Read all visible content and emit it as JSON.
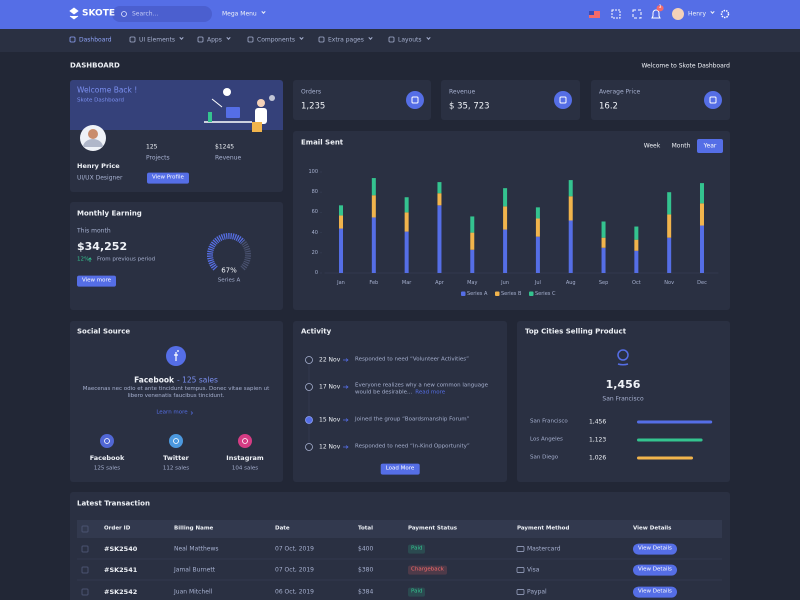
{
  "header": {
    "logo": "SKOTE",
    "search_placeholder": "Search...",
    "mega_menu": "Mega Menu",
    "notification_count": "3",
    "user": "Henry"
  },
  "nav": [
    "Dashboard",
    "UI Elements",
    "Apps",
    "Components",
    "Extra pages",
    "Layouts"
  ],
  "page": {
    "title": "DASHBOARD",
    "breadcrumb": "Welcome to Skote Dashboard"
  },
  "welcome": {
    "title": "Welcome Back !",
    "subtitle": "Skote Dashboard",
    "name": "Henry Price",
    "role": "UI/UX Designer",
    "stats": [
      {
        "value": "125",
        "label": "Projects"
      },
      {
        "value": "$1245",
        "label": "Revenue"
      }
    ],
    "button": "View Profile"
  },
  "stats": [
    {
      "label": "Orders",
      "value": "1,235"
    },
    {
      "label": "Revenue",
      "value": "$ 35, 723"
    },
    {
      "label": "Average Price",
      "value": "16.2"
    }
  ],
  "monthly_earning": {
    "title": "Monthly Earning",
    "period": "This month",
    "amount": "$34,252",
    "change": "12%",
    "change_text": "From previous period",
    "button": "View more",
    "gauge": {
      "value": 67,
      "label": "67%",
      "name": "Series A",
      "color": "#556ee6"
    }
  },
  "email_chart": {
    "type": "bar",
    "stacked": true,
    "title": "Email Sent",
    "ranges": [
      "Week",
      "Month",
      "Year"
    ],
    "active_range": 2,
    "categories": [
      "Jan",
      "Feb",
      "Mar",
      "Apr",
      "May",
      "Jun",
      "Jul",
      "Aug",
      "Sep",
      "Oct",
      "Nov",
      "Dec"
    ],
    "series": [
      {
        "name": "Series A",
        "color": "#556ee6",
        "values": [
          44,
          55,
          41,
          67,
          23,
          43,
          36,
          52,
          25,
          22,
          35,
          47
        ]
      },
      {
        "name": "Series B",
        "color": "#f1b44c",
        "values": [
          13,
          22,
          19,
          12,
          17,
          23,
          18,
          24,
          10,
          11,
          23,
          22
        ]
      },
      {
        "name": "Series C",
        "color": "#34c38f",
        "values": [
          10,
          17,
          15,
          11,
          16,
          18,
          11,
          16,
          16,
          13,
          22,
          20
        ]
      }
    ],
    "ylim": [
      0,
      100
    ],
    "yticks": [
      0,
      20,
      40,
      60,
      80,
      100
    ]
  },
  "social": {
    "title": "Social Source",
    "featured": "Facebook",
    "featured_sales": "- 125 sales",
    "text": "Maecenas nec odio et ante tincidunt tempus. Donec vitae sapien ut libero venenatis faucibus tincidunt.",
    "link": "Learn more",
    "items": [
      {
        "name": "Facebook",
        "sales": "125 sales",
        "color": "#556ee6"
      },
      {
        "name": "Twitter",
        "sales": "112 sales",
        "color": "#50a5f1"
      },
      {
        "name": "Instagram",
        "sales": "104 sales",
        "color": "#e83e8c"
      }
    ]
  },
  "activity": {
    "title": "Activity",
    "items": [
      {
        "date": "22 Nov",
        "text": "Responded to need “Volunteer Activities”"
      },
      {
        "date": "17 Nov",
        "text": "Everyone realizes why a new common language would be desirable...",
        "link": "Read more"
      },
      {
        "date": "15 Nov",
        "text": "Joined the group “Boardsmanship Forum”"
      },
      {
        "date": "12 Nov",
        "text": "Responded to need “In-Kind Opportunity”"
      }
    ],
    "button": "Load More"
  },
  "top_cities": {
    "title": "Top Cities Selling Product",
    "value": "1,456",
    "city": "San Francisco",
    "rows": [
      {
        "city": "San Francisco",
        "value": "1,456",
        "percent": 94,
        "color": "#556ee6"
      },
      {
        "city": "Los Angeles",
        "value": "1,123",
        "percent": 82,
        "color": "#34c38f"
      },
      {
        "city": "San Diego",
        "value": "1,026",
        "percent": 70,
        "color": "#f1b44c"
      }
    ]
  },
  "transactions": {
    "title": "Latest Transaction",
    "columns": [
      "Order ID",
      "Billing Name",
      "Date",
      "Total",
      "Payment Status",
      "Payment Method",
      "View Details"
    ],
    "rows": [
      {
        "cells": [
          "#SK2540",
          "Neal Matthews",
          "07 Oct, 2019",
          "$400",
          "Paid",
          "Mastercard",
          "View Details"
        ],
        "status_color": "#34c38f"
      },
      {
        "cells": [
          "#SK2541",
          "Jamal Burnett",
          "07 Oct, 2019",
          "$380",
          "Chargeback",
          "Visa",
          "View Details"
        ],
        "status_color": "#f46a6a"
      },
      {
        "cells": [
          "#SK2542",
          "Juan Mitchell",
          "06 Oct, 2019",
          "$384",
          "Paid",
          "Paypal",
          "View Details"
        ],
        "status_color": "#34c38f"
      }
    ]
  }
}
